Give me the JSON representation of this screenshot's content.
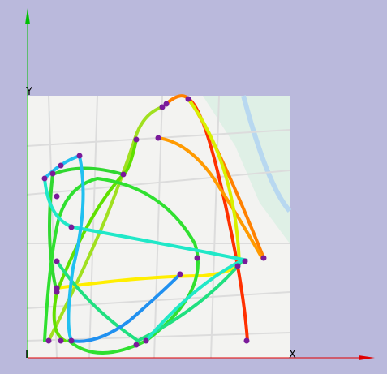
{
  "axes": {
    "y_label": "Y",
    "x_label": "X"
  }
}
